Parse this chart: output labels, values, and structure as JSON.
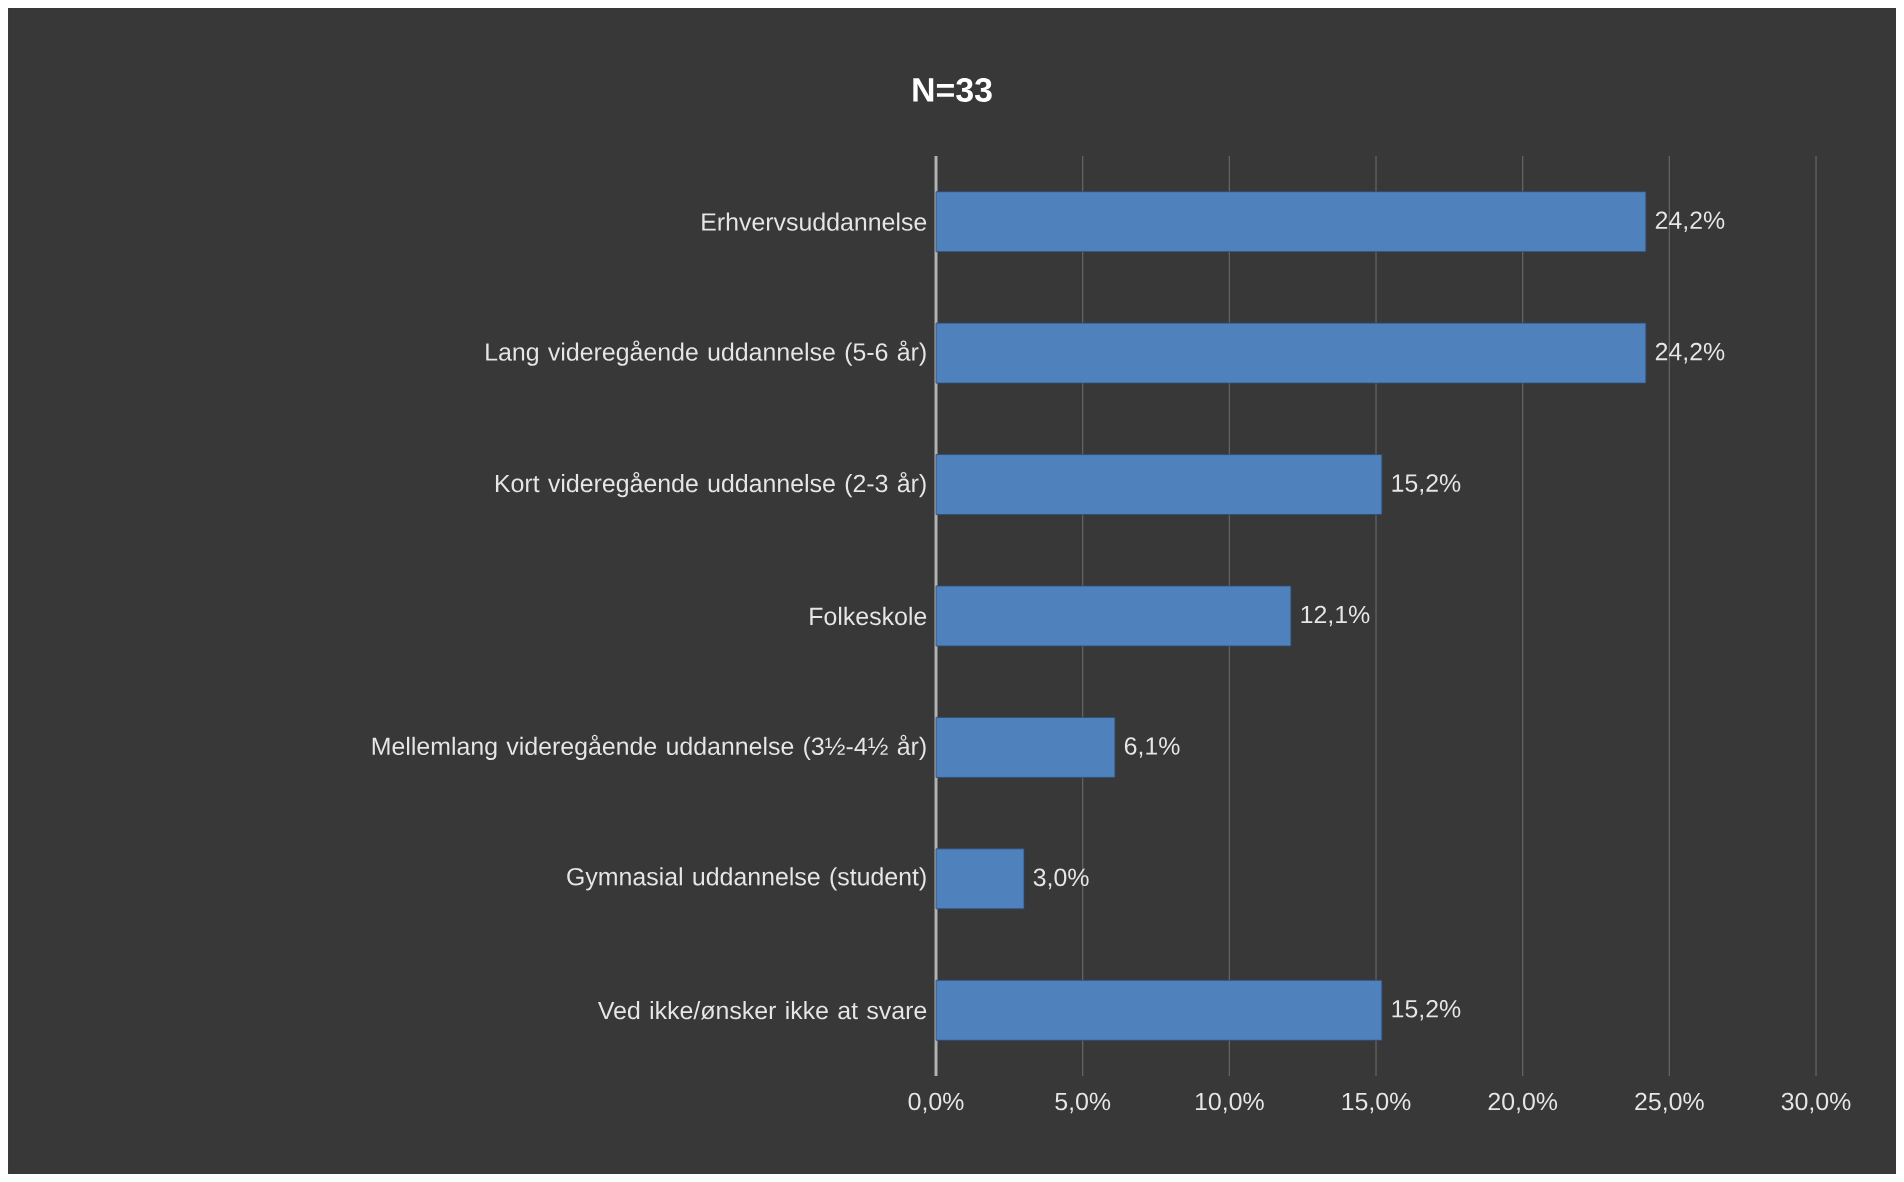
{
  "chart_data": {
    "type": "bar",
    "orientation": "horizontal",
    "title": "N=33",
    "categories": [
      "Erhvervsuddannelse",
      "Lang videregående uddannelse (5-6 år)",
      "Kort videregående uddannelse (2-3 år)",
      "Folkeskole",
      "Mellemlang videregående uddannelse (3½-4½ år)",
      "Gymnasial uddannelse (student)",
      "Ved ikke/ønsker ikke at svare"
    ],
    "values": [
      24.2,
      24.2,
      15.2,
      12.1,
      6.1,
      3.0,
      15.2
    ],
    "value_labels": [
      "24,2%",
      "24,2%",
      "15,2%",
      "12,1%",
      "6,1%",
      "3,0%",
      "15,2%"
    ],
    "color": "#4f81bd",
    "xlim": [
      0,
      30
    ],
    "xticks": [
      {
        "value": 0,
        "label": "0,0%"
      },
      {
        "value": 5,
        "label": "5,0%"
      },
      {
        "value": 10,
        "label": "10,0%"
      },
      {
        "value": 15,
        "label": "15,0%"
      },
      {
        "value": 20,
        "label": "20,0%"
      },
      {
        "value": 25,
        "label": "25,0%"
      },
      {
        "value": 30,
        "label": "30,0%"
      }
    ],
    "grid": "x"
  }
}
